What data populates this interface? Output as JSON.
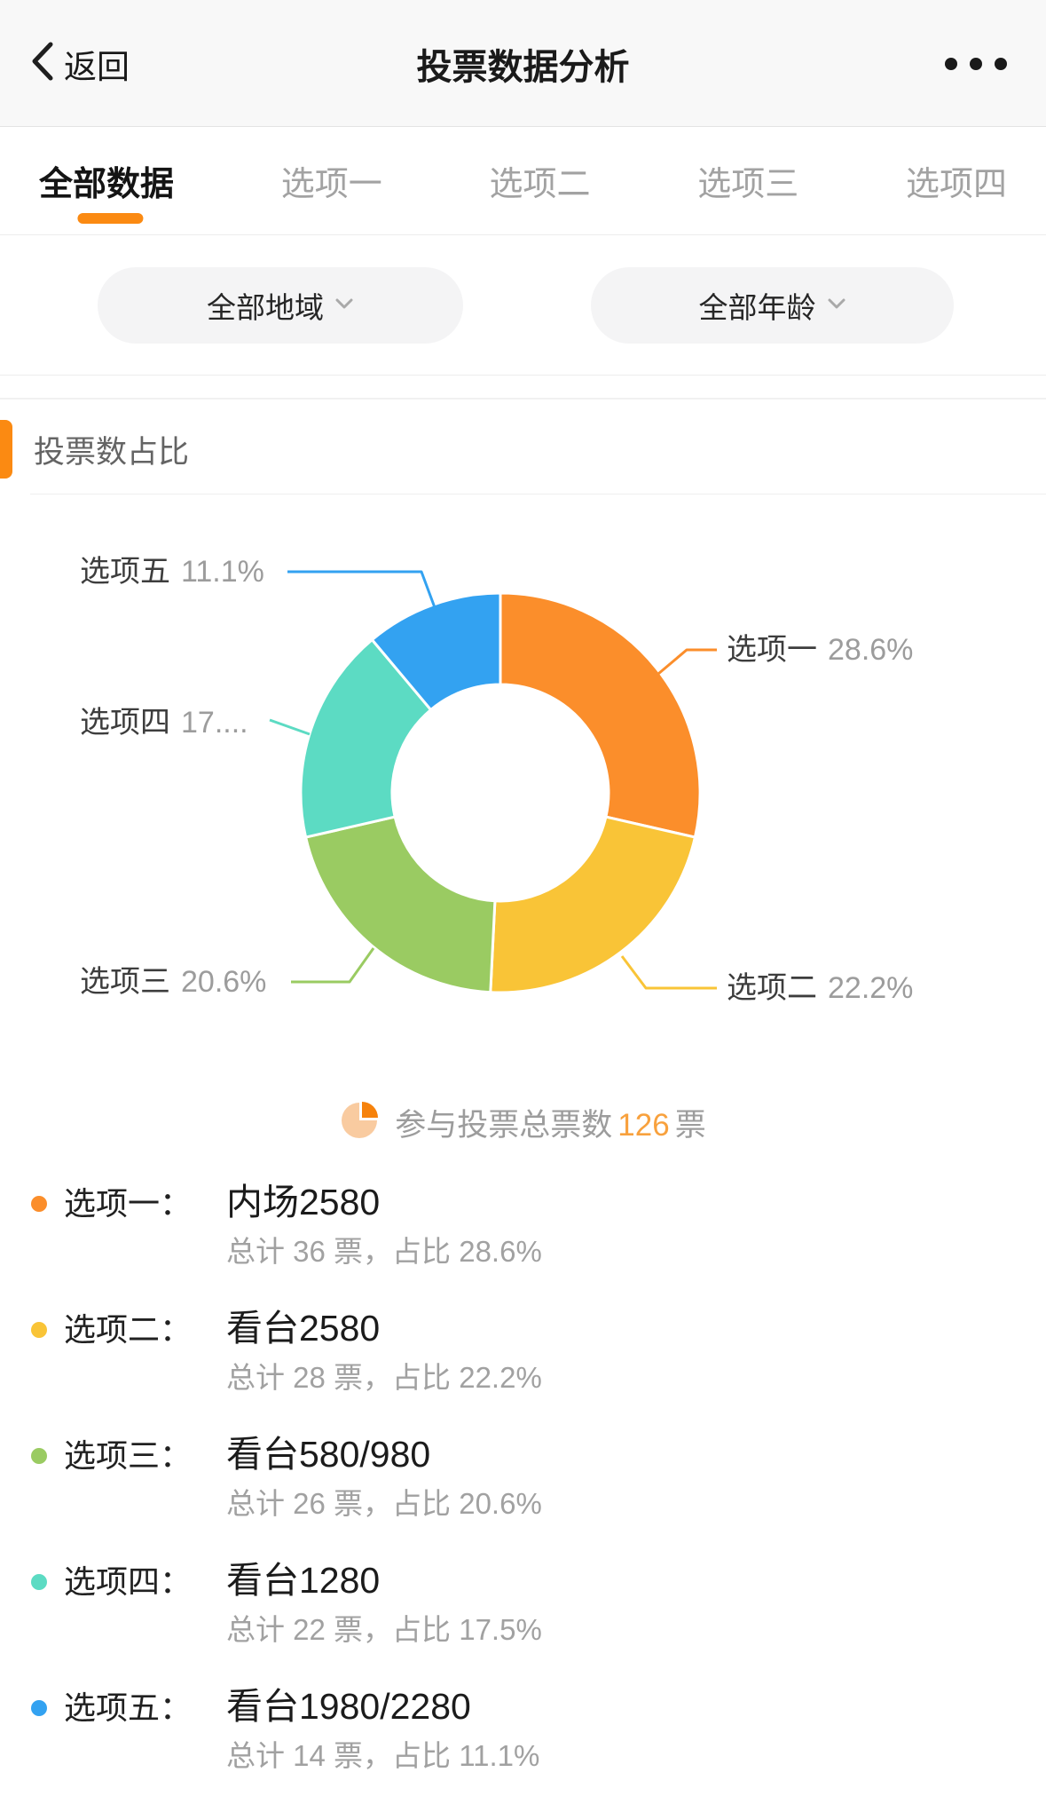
{
  "header": {
    "back_label": "返回",
    "title": "投票数据分析"
  },
  "tabs": [
    {
      "label": "全部数据",
      "active": true
    },
    {
      "label": "选项一",
      "active": false
    },
    {
      "label": "选项二",
      "active": false
    },
    {
      "label": "选项三",
      "active": false
    },
    {
      "label": "选项四",
      "active": false
    }
  ],
  "filters": {
    "region": "全部地域",
    "age": "全部年龄"
  },
  "section": {
    "title": "投票数占比"
  },
  "chart_data": {
    "type": "pie",
    "subtype": "donut",
    "title": "投票数占比",
    "labels": [
      "选项一",
      "选项二",
      "选项三",
      "选项四",
      "选项五"
    ],
    "values": [
      36,
      28,
      26,
      22,
      14
    ],
    "percents": [
      28.6,
      22.2,
      20.6,
      17.5,
      11.1
    ],
    "percent_labels": [
      "28.6%",
      "22.2%",
      "20.6%",
      "17....",
      "11.1%"
    ],
    "colors": [
      "#FB8E2B",
      "#F9C437",
      "#9ACB62",
      "#5CDBC3",
      "#33A2F1"
    ],
    "total": 126,
    "legend_position": "callout-lines",
    "start_angle_deg": 0,
    "clockwise": true
  },
  "total_row": {
    "prefix": "参与投票总票数",
    "count": "126",
    "suffix": "票"
  },
  "options": [
    {
      "name": "选项一：",
      "value": "内场2580",
      "detail": "总计 36 票，占比 28.6%",
      "color": "#FB8E2B"
    },
    {
      "name": "选项二：",
      "value": "看台2580",
      "detail": "总计 28 票，占比 22.2%",
      "color": "#F9C437"
    },
    {
      "name": "选项三：",
      "value": "看台580/980",
      "detail": "总计 26 票，占比 20.6%",
      "color": "#9ACB62"
    },
    {
      "name": "选项四：",
      "value": "看台1280",
      "detail": "总计 22 票，占比 17.5%",
      "color": "#5CDBC3"
    },
    {
      "name": "选项五：",
      "value": "看台1980/2280",
      "detail": "总计 14 票，占比 11.1%",
      "color": "#33A2F1"
    }
  ],
  "ui_colors": {
    "accent_orange": "#FB8A12",
    "header_bg": "#F8F8F8",
    "pill_bg": "#F4F4F5",
    "count_orange": "#F8A13D",
    "pie_icon_light": "#F9CBA0",
    "pie_icon_dark": "#F6820C",
    "label_dark": "#3D3D3D",
    "label_gray": "#9C9C9C"
  }
}
